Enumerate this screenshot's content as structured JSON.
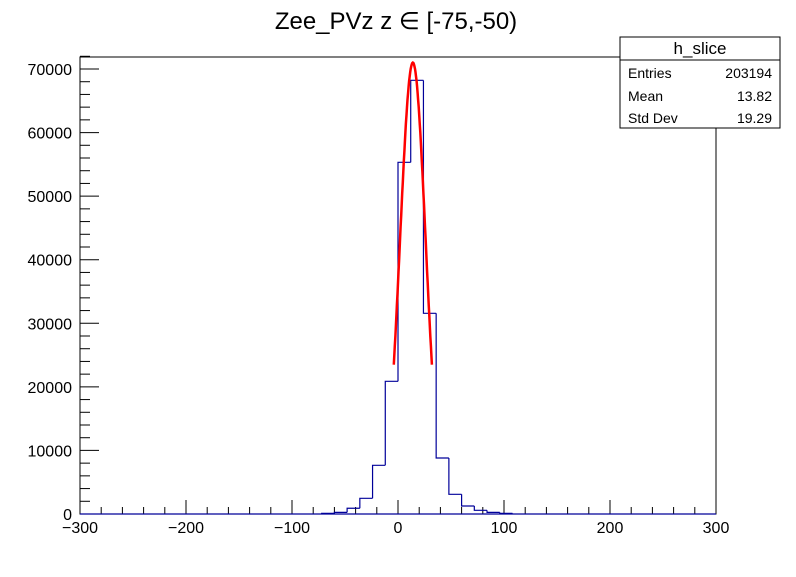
{
  "chart_data": {
    "type": "bar",
    "title": "Zee_PVz z  ∈ [-75,-50)",
    "xlabel": "",
    "ylabel": "",
    "xlim": [
      -300,
      300
    ],
    "ylim": [
      0,
      72000
    ],
    "x_ticks": [
      -300,
      -200,
      -100,
      0,
      100,
      200,
      300
    ],
    "x_tick_labels": [
      "−300",
      "−200",
      "−100",
      "0",
      "100",
      "200",
      "300"
    ],
    "y_ticks": [
      0,
      10000,
      20000,
      30000,
      40000,
      50000,
      60000,
      70000
    ],
    "y_tick_labels": [
      "0",
      "10000",
      "20000",
      "30000",
      "40000",
      "50000",
      "60000",
      "70000"
    ],
    "bin_width": 12,
    "bins": [
      {
        "low": -72,
        "value": 100
      },
      {
        "low": -60,
        "value": 260
      },
      {
        "low": -48,
        "value": 900
      },
      {
        "low": -36,
        "value": 2470
      },
      {
        "low": -24,
        "value": 7660
      },
      {
        "low": -12,
        "value": 20870
      },
      {
        "low": 0,
        "value": 55320
      },
      {
        "low": 12,
        "value": 68220
      },
      {
        "low": 24,
        "value": 31570
      },
      {
        "low": 36,
        "value": 8810
      },
      {
        "low": 48,
        "value": 3100
      },
      {
        "low": 60,
        "value": 1260
      },
      {
        "low": 72,
        "value": 580
      },
      {
        "low": 84,
        "value": 260
      },
      {
        "low": 96,
        "value": 100
      }
    ],
    "fit": {
      "type": "gaussian",
      "constant": 71000,
      "mean": 14,
      "sigma": 12.1,
      "range": [
        -4,
        32
      ],
      "color": "#ff0000"
    },
    "histogram_color": "#000099",
    "stats": {
      "name": "h_slice",
      "rows": [
        {
          "label": "Entries",
          "value": "203194"
        },
        {
          "label": "Mean",
          "value": "13.82"
        },
        {
          "label": "Std Dev",
          "value": "19.29"
        }
      ]
    }
  }
}
